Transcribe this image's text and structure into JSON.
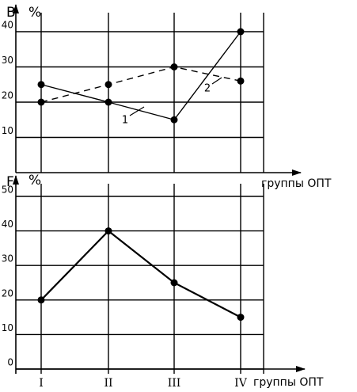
{
  "chart_data": [
    {
      "type": "line",
      "ylabel": "В",
      "yunit": "%",
      "xlabel": "группы ОПТ",
      "ylim": [
        0,
        40
      ],
      "yticks": [
        10,
        20,
        30,
        40
      ],
      "grid": true,
      "series": [
        {
          "name": "1",
          "color": "#000000",
          "line_style": "solid",
          "values": [
            25,
            20,
            15,
            40
          ]
        },
        {
          "name": "2",
          "color": "#000000",
          "line_style": "dashed",
          "values": [
            20,
            25,
            30,
            26
          ]
        }
      ]
    },
    {
      "type": "line",
      "ylabel": "F",
      "yunit": "%",
      "xlabel": "группы ОПТ",
      "categories": [
        "I",
        "II",
        "III",
        "IV"
      ],
      "ylim": [
        0,
        50
      ],
      "yticks": [
        0,
        10,
        20,
        30,
        40,
        50
      ],
      "grid": true,
      "color": "#000000",
      "values": [
        20,
        40,
        25,
        15
      ]
    }
  ]
}
